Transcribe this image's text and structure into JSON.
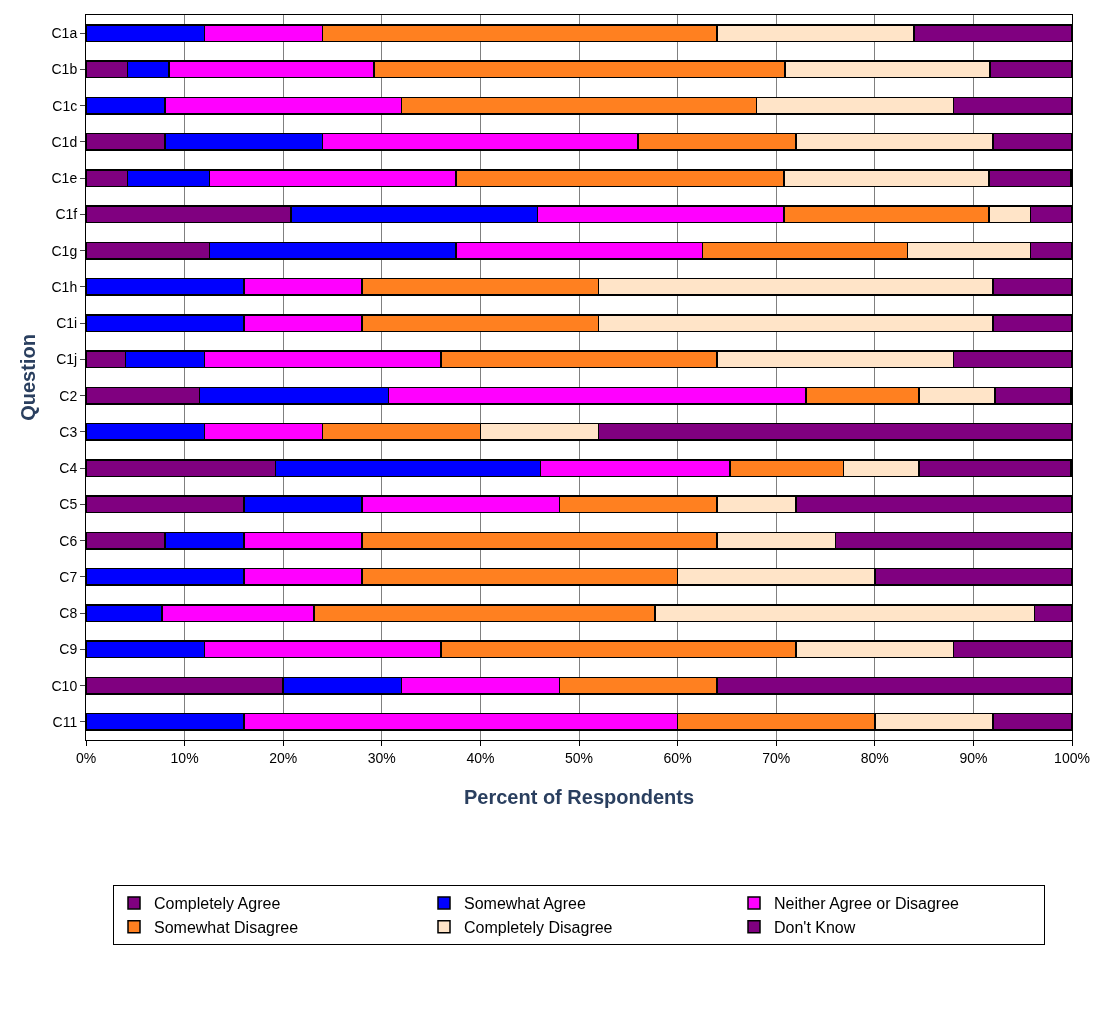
{
  "chart_data": {
    "type": "bar",
    "orientation": "horizontal",
    "stacked": true,
    "xlabel": "Percent of Respondents",
    "ylabel": "Question",
    "categories": [
      "C1a",
      "C1b",
      "C1c",
      "C1d",
      "C1e",
      "C1f",
      "C1g",
      "C1h",
      "C1i",
      "C1j",
      "C2",
      "C3",
      "C4",
      "C5",
      "C6",
      "C7",
      "C8",
      "C9",
      "C10",
      "C11"
    ],
    "series": [
      {
        "name": "Completely Agree",
        "color": "#800080",
        "values": [
          0,
          4.2,
          0,
          8,
          4.2,
          20.8,
          12.5,
          0,
          0,
          4,
          11.5,
          0,
          19.2,
          16,
          8,
          0,
          0,
          0,
          20,
          0
        ]
      },
      {
        "name": "Somewhat Agree",
        "color": "#0000ff",
        "values": [
          12,
          4.2,
          8,
          16,
          8.3,
          25,
          25,
          16,
          16,
          8,
          19.2,
          12,
          26.9,
          12,
          8,
          16,
          7.7,
          12,
          12,
          16
        ]
      },
      {
        "name": "Neither Agree or Disagree",
        "color": "#ff00ff",
        "values": [
          12,
          20.8,
          24,
          32,
          25,
          25,
          25,
          12,
          12,
          24,
          42.3,
          12,
          19.2,
          20,
          12,
          12,
          15.4,
          24,
          16,
          44
        ]
      },
      {
        "name": "Somewhat Disagree",
        "color": "#ff8020",
        "values": [
          40,
          41.7,
          36,
          16,
          33.3,
          20.8,
          20.8,
          24,
          24,
          28,
          11.5,
          16,
          11.5,
          16,
          36,
          32,
          34.6,
          36,
          16,
          20
        ]
      },
      {
        "name": "Completely Disagree",
        "color": "#ffe4c8",
        "values": [
          20,
          20.8,
          20,
          20,
          20.8,
          4.2,
          12.5,
          40,
          40,
          24,
          7.7,
          12,
          7.7,
          8,
          12,
          20,
          38.5,
          16,
          0,
          12
        ]
      },
      {
        "name": "Don't Know",
        "color": "#800080",
        "values": [
          16,
          8.3,
          12,
          8,
          8.3,
          4.2,
          4.2,
          8,
          8,
          12,
          7.7,
          48,
          15.4,
          28,
          24,
          20,
          3.8,
          12,
          36,
          8
        ]
      }
    ],
    "xlim": [
      0,
      100
    ],
    "xticks": [
      {
        "value": 0,
        "label": "0%"
      },
      {
        "value": 10,
        "label": "10%"
      },
      {
        "value": 20,
        "label": "20%"
      },
      {
        "value": 30,
        "label": "30%"
      },
      {
        "value": 40,
        "label": "40%"
      },
      {
        "value": 50,
        "label": "50%"
      },
      {
        "value": 60,
        "label": "60%"
      },
      {
        "value": 70,
        "label": "70%"
      },
      {
        "value": 80,
        "label": "80%"
      },
      {
        "value": 90,
        "label": "90%"
      },
      {
        "value": 100,
        "label": "100%"
      }
    ],
    "grid": "x",
    "legend": "bottom"
  }
}
